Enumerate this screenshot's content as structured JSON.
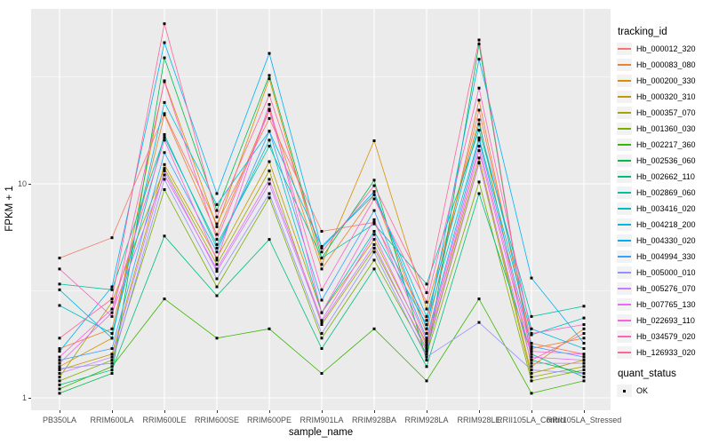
{
  "axes": {
    "x_title": "sample_name",
    "y_title": "FPKM + 1",
    "y_ticks": [
      {
        "label": "10",
        "value": 10
      },
      {
        "label": "1",
        "value": 1
      }
    ]
  },
  "legend": {
    "tracking_title": "tracking_id",
    "quant_title": "quant_status",
    "quant_items": [
      {
        "label": "OK",
        "marker": "black-square"
      }
    ]
  },
  "colors": {
    "panel_bg": "#EBEBEB",
    "grid": "#FFFFFF",
    "tick_label": "#4D4D4D",
    "point": "#000000",
    "legend_key_bg": "#F2F2F2"
  },
  "chart_data": {
    "type": "line",
    "y_scale": "log10",
    "ylim": [
      1,
      66
    ],
    "y_major_gridlines": [
      1,
      10
    ],
    "y_minor_gridlines": [
      3.1623,
      31.623
    ],
    "grid": true,
    "legend_position": "right",
    "point_shape": "filled-square",
    "x_categories": [
      "PB350LA",
      "RRIM600LA",
      "RRIM600LE",
      "RRIM600SE",
      "RRIM600PE",
      "RRIM901LA",
      "RRIM928BA",
      "RRIM928LA",
      "RRIM928LE",
      "RRII105LA_Control",
      "RRII105LA_Stressed"
    ],
    "series": [
      {
        "name": "Hb_000012_320",
        "color": "#F8766D",
        "values": [
          4.5,
          5.6,
          21.3,
          6.5,
          20.2,
          6.0,
          6.6,
          2.3,
          22.1,
          1.8,
          1.6
        ]
      },
      {
        "name": "Hb_000083_080",
        "color": "#EA8331",
        "values": [
          1.7,
          2.1,
          21.0,
          5.8,
          22.3,
          4.0,
          8.9,
          2.0,
          24.6,
          1.7,
          1.9
        ]
      },
      {
        "name": "Hb_000200_330",
        "color": "#D89000",
        "values": [
          1.4,
          1.9,
          30.3,
          6.3,
          31.0,
          4.2,
          15.9,
          2.6,
          19.9,
          1.4,
          2.1
        ]
      },
      {
        "name": "Hb_000320_310",
        "color": "#C09B00",
        "values": [
          1.35,
          1.6,
          12.3,
          4.5,
          12.7,
          2.5,
          5.5,
          1.8,
          13.2,
          1.3,
          1.5
        ]
      },
      {
        "name": "Hb_000357_070",
        "color": "#A3A500",
        "values": [
          1.25,
          2.8,
          11.8,
          4.2,
          11.5,
          2.2,
          5.0,
          1.7,
          12.6,
          1.25,
          1.4
        ]
      },
      {
        "name": "Hb_001360_030",
        "color": "#7CAE00",
        "values": [
          1.2,
          1.5,
          9.4,
          3.3,
          8.6,
          1.9,
          4.4,
          1.6,
          10.2,
          1.2,
          1.35
        ]
      },
      {
        "name": "Hb_002217_360",
        "color": "#39B600",
        "values": [
          1.1,
          1.4,
          2.9,
          1.9,
          2.1,
          1.3,
          2.1,
          1.2,
          2.9,
          1.05,
          1.2
        ]
      },
      {
        "name": "Hb_002536_060",
        "color": "#00BB4E",
        "values": [
          1.05,
          1.3,
          38.8,
          7.5,
          32.1,
          4.5,
          10.4,
          1.5,
          45.0,
          1.5,
          1.3
        ]
      },
      {
        "name": "Hb_002662_110",
        "color": "#00BF7D",
        "values": [
          1.15,
          1.35,
          5.7,
          3.0,
          5.5,
          1.7,
          4.0,
          1.4,
          9.0,
          1.6,
          1.25
        ]
      },
      {
        "name": "Hb_002869_060",
        "color": "#00C1A3",
        "values": [
          3.4,
          3.2,
          16.5,
          5.2,
          15.0,
          4.5,
          6.5,
          3.4,
          17.8,
          2.4,
          2.68
        ]
      },
      {
        "name": "Hb_003416_020",
        "color": "#00BFC4",
        "values": [
          2.7,
          2.0,
          17.0,
          5.0,
          16.0,
          2.5,
          6.0,
          2.2,
          16.4,
          1.97,
          2.36
        ]
      },
      {
        "name": "Hb_004218_200",
        "color": "#00BAE0",
        "values": [
          3.2,
          1.9,
          24.0,
          8.0,
          17.6,
          5.1,
          8.9,
          2.4,
          19.0,
          2.1,
          1.7
        ]
      },
      {
        "name": "Hb_004330_020",
        "color": "#00B0F6",
        "values": [
          1.65,
          3.3,
          45.7,
          9.0,
          40.7,
          5.0,
          9.2,
          2.1,
          38.2,
          3.63,
          1.8
        ]
      },
      {
        "name": "Hb_004994_330",
        "color": "#35A2FF",
        "values": [
          1.5,
          1.7,
          14.0,
          4.8,
          17.6,
          2.86,
          7.5,
          1.9,
          16.0,
          1.74,
          1.55
        ]
      },
      {
        "name": "Hb_005000_010",
        "color": "#9590FF",
        "values": [
          1.37,
          1.45,
          10.5,
          3.6,
          9.0,
          2.0,
          4.8,
          1.55,
          2.25,
          1.35,
          1.3
        ]
      },
      {
        "name": "Hb_005276_070",
        "color": "#C77CFF",
        "values": [
          1.3,
          1.55,
          11.5,
          3.9,
          10.0,
          2.25,
          5.2,
          1.65,
          12.5,
          1.45,
          1.45
        ]
      },
      {
        "name": "Hb_007765_130",
        "color": "#E76BF3",
        "values": [
          1.45,
          2.5,
          11.0,
          4.0,
          10.5,
          2.3,
          5.8,
          1.75,
          14.3,
          1.55,
          1.5
        ]
      },
      {
        "name": "Hb_022693_110",
        "color": "#FA62DB",
        "values": [
          1.55,
          2.6,
          16.0,
          4.4,
          23.5,
          2.5,
          6.8,
          1.85,
          15.0,
          1.65,
          1.6
        ]
      },
      {
        "name": "Hb_034579_020",
        "color": "#FF62BC",
        "values": [
          4.0,
          2.4,
          30.0,
          5.5,
          22.0,
          3.2,
          8.5,
          2.8,
          28.0,
          2.0,
          2.2
        ]
      },
      {
        "name": "Hb_126933_020",
        "color": "#FF6598",
        "values": [
          1.9,
          2.9,
          56.0,
          7.0,
          26.0,
          4.8,
          9.8,
          3.1,
          47.0,
          1.5,
          2.0
        ]
      }
    ]
  }
}
